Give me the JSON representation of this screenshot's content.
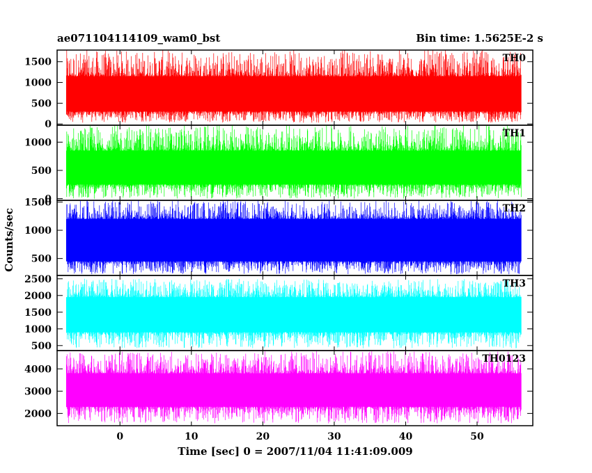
{
  "chart_data": {
    "type": "line",
    "title_left": "ae071104114109_wam0_bst",
    "title_right": "Bin time: 1.5625E-2 s",
    "xlabel": "Time [sec] 0 = 2007/11/04 11:41:09.009",
    "ylabel": "Counts/sec",
    "xlim": [
      -8.8,
      57.8
    ],
    "data_xrange": [
      -7.5,
      56.2
    ],
    "x_ticks": [
      0,
      10,
      20,
      30,
      40,
      50
    ],
    "grid": false,
    "panels": [
      {
        "name": "TH0",
        "color": "#ff0000",
        "ylim": [
          -30,
          1780
        ],
        "y_ticks": [
          0,
          500,
          1000,
          1500
        ],
        "band": [
          300,
          1150
        ],
        "noise_min": 30,
        "noise_max": 1780
      },
      {
        "name": "TH1",
        "color": "#00ff00",
        "ylim": [
          -30,
          1300
        ],
        "y_ticks": [
          0,
          500,
          1000
        ],
        "band": [
          250,
          850
        ],
        "noise_min": 0,
        "noise_max": 1300
      },
      {
        "name": "TH2",
        "color": "#0000ff",
        "ylim": [
          200,
          1530
        ],
        "y_ticks": [
          500,
          1000,
          1500
        ],
        "band": [
          450,
          1200
        ],
        "noise_min": 220,
        "noise_max": 1530
      },
      {
        "name": "TH3",
        "color": "#00ffff",
        "ylim": [
          350,
          2600
        ],
        "y_ticks": [
          500,
          1000,
          1500,
          2000,
          2500
        ],
        "band": [
          900,
          1950
        ],
        "noise_min": 420,
        "noise_max": 2500
      },
      {
        "name": "TH0123",
        "color": "#ff00ff",
        "ylim": [
          1450,
          4820
        ],
        "y_ticks": [
          2000,
          3000,
          4000
        ],
        "band": [
          2300,
          3800
        ],
        "noise_min": 1550,
        "noise_max": 4800
      }
    ]
  }
}
